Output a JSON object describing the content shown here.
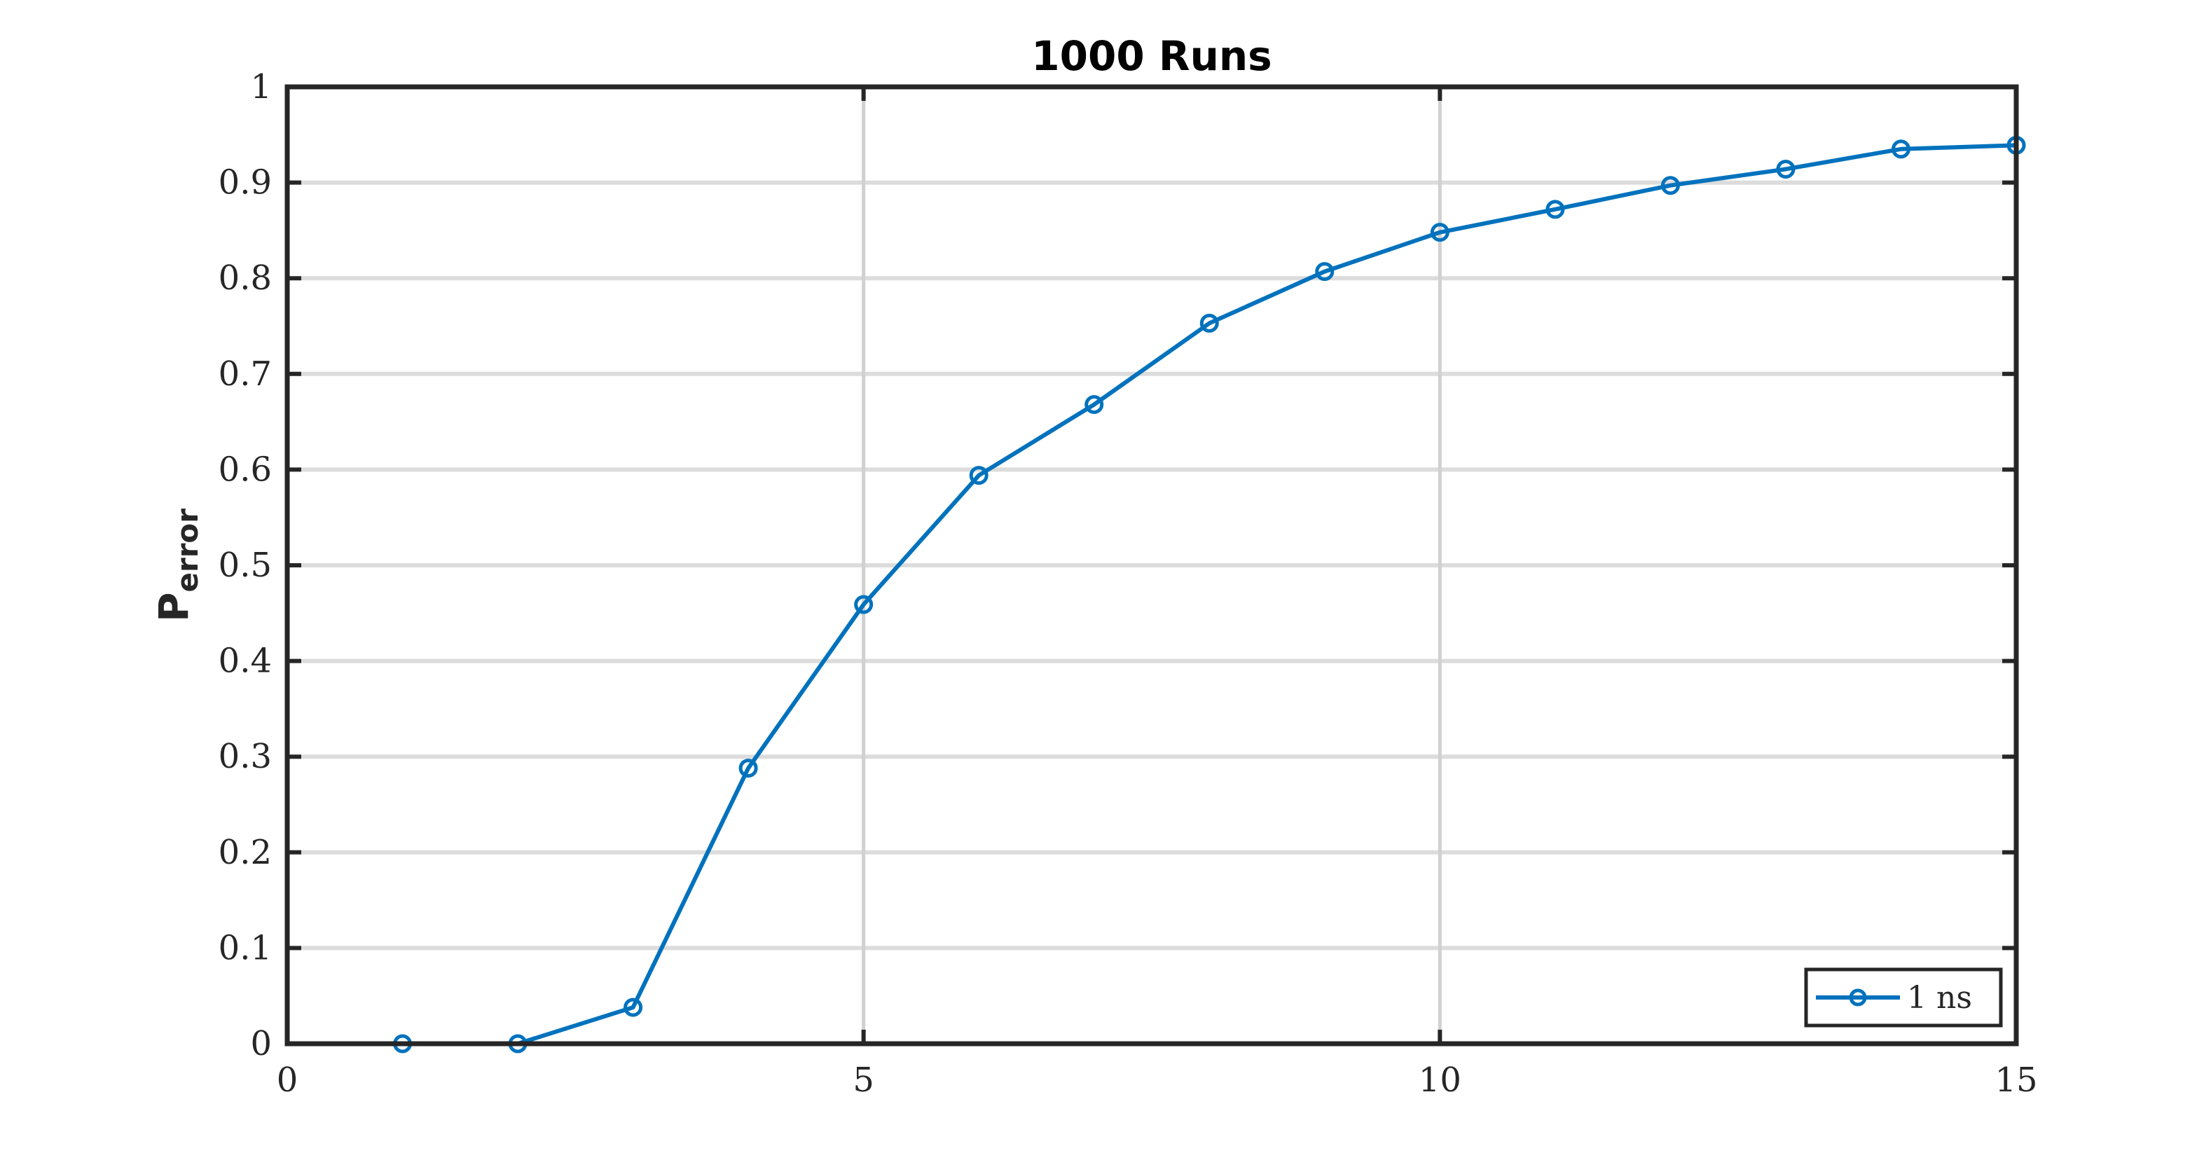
{
  "chart_data": {
    "type": "line",
    "title": "1000 Runs",
    "xlabel": "",
    "ylabel": "P",
    "ylabel_subscript": "error",
    "xlim": [
      0,
      15
    ],
    "ylim": [
      0,
      1
    ],
    "xticks": [
      "0",
      "5",
      "10",
      "15"
    ],
    "xtick_values": [
      0,
      5,
      10,
      15
    ],
    "yticks": [
      "0",
      "0.1",
      "0.2",
      "0.3",
      "0.4",
      "0.5",
      "0.6",
      "0.7",
      "0.8",
      "0.9",
      "1"
    ],
    "ytick_values": [
      0,
      0.1,
      0.2,
      0.3,
      0.4,
      0.5,
      0.6,
      0.7,
      0.8,
      0.9,
      1
    ],
    "grid": true,
    "legend_position": "bottom-right",
    "series": [
      {
        "name": "1 ns",
        "color": "#0072bd",
        "marker": "circle",
        "x": [
          1,
          2,
          3,
          4,
          5,
          6,
          7,
          8,
          9,
          10,
          11,
          12,
          13,
          14,
          15
        ],
        "y": [
          0.0,
          0.0,
          0.038,
          0.288,
          0.459,
          0.594,
          0.668,
          0.753,
          0.807,
          0.848,
          0.872,
          0.897,
          0.914,
          0.935,
          0.939
        ]
      }
    ]
  }
}
